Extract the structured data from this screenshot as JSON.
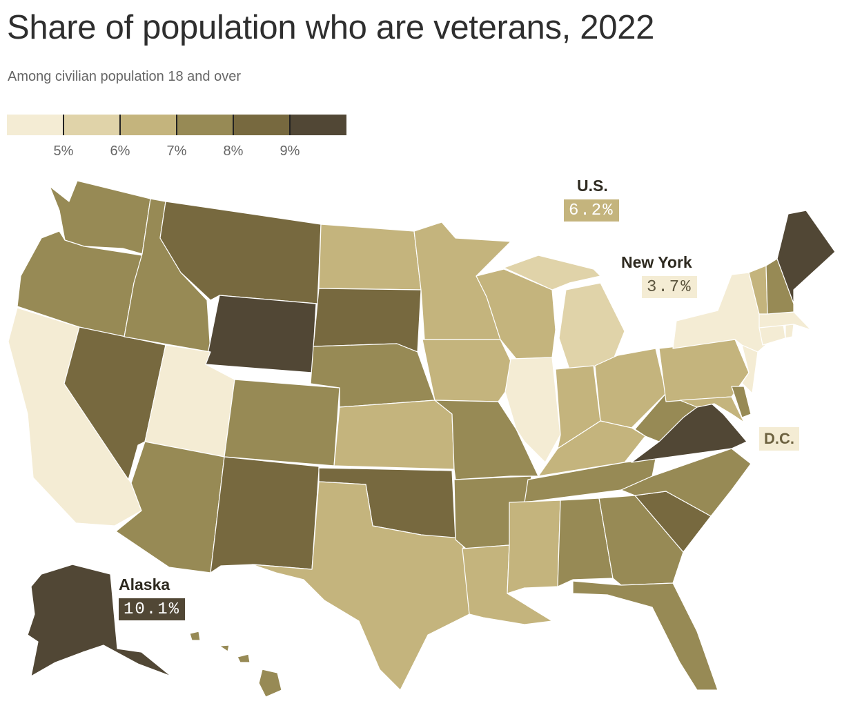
{
  "title": "Share of population who are veterans, 2022",
  "subtitle": "Among civilian population 18 and over",
  "legend": {
    "colors": [
      "#f4ecd4",
      "#e0d3a9",
      "#c4b47d",
      "#978a55",
      "#77693f",
      "#514735"
    ],
    "ticks": [
      "5%",
      "6%",
      "7%",
      "8%",
      "9%"
    ]
  },
  "callouts": {
    "us": {
      "name": "U.S.",
      "value": "6.2%",
      "color": "#c4b47d",
      "text_color": "#ffffff"
    },
    "new_york": {
      "name": "New York",
      "value": "3.7%",
      "color": "#f4ecd4",
      "text_color": "#5c553f"
    },
    "dc": {
      "name": "D.C.",
      "color": "#f4ecd4"
    },
    "alaska": {
      "name": "Alaska",
      "value": "10.1%",
      "color": "#514735",
      "text_color": "#ffffff"
    }
  },
  "states": {
    "WA": 4,
    "OR": 4,
    "CA": 1,
    "NV": 5,
    "ID": 4,
    "MT": 5,
    "WY": 6,
    "UT": 1,
    "AZ": 4,
    "CO": 4,
    "NM": 5,
    "ND": 3,
    "SD": 5,
    "NE": 4,
    "KS": 3,
    "OK": 5,
    "TX": 3,
    "MN": 3,
    "IA": 3,
    "MO": 4,
    "AR": 4,
    "LA": 3,
    "WI": 3,
    "IL": 1,
    "MI": 2,
    "IN": 3,
    "OH": 3,
    "KY": 3,
    "TN": 4,
    "MS": 3,
    "AL": 4,
    "GA": 4,
    "FL": 4,
    "SC": 5,
    "NC": 4,
    "VA": 6,
    "WV": 4,
    "PA": 3,
    "MD": 3,
    "DE": 4,
    "NJ": 1,
    "NY": 1,
    "CT": 1,
    "RI": 1,
    "MA": 1,
    "VT": 3,
    "NH": 4,
    "ME": 6,
    "AK": 6,
    "HI": 4
  }
}
